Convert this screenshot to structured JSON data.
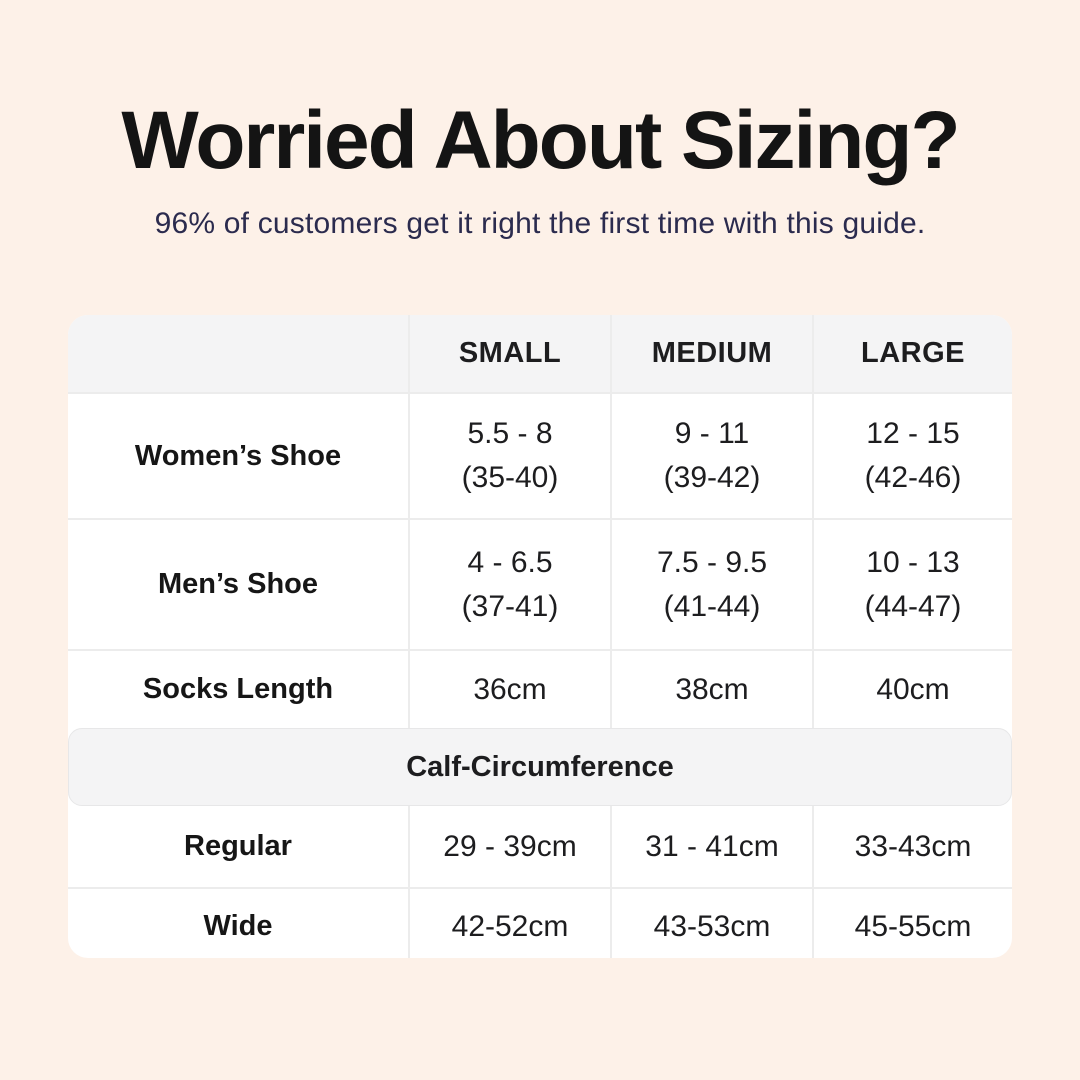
{
  "colors": {
    "background": "#fdf1e8",
    "table_bg": "#ffffff",
    "band_bg": "#f4f4f5",
    "divider": "#ececec",
    "title_text": "#141414",
    "subtitle_text": "#2b2b4e",
    "table_text": "#1d1d1f"
  },
  "header": {
    "title": "Worried About Sizing?",
    "subtitle": "96% of customers get it right the first time with this guide."
  },
  "table": {
    "columns": [
      "SMALL",
      "MEDIUM",
      "LARGE"
    ],
    "rows": [
      {
        "label": "Women’s Shoe",
        "small": [
          "5.5 - 8",
          "(35-40)"
        ],
        "medium": [
          "9 - 11",
          "(39-42)"
        ],
        "large": [
          "12 - 15",
          "(42-46)"
        ]
      },
      {
        "label": "Men’s Shoe",
        "small": [
          "4 - 6.5",
          "(37-41)"
        ],
        "medium": [
          "7.5 - 9.5",
          "(41-44)"
        ],
        "large": [
          "10 - 13",
          "(44-47)"
        ]
      },
      {
        "label": "Socks Length",
        "small": [
          "36cm"
        ],
        "medium": [
          "38cm"
        ],
        "large": [
          "40cm"
        ]
      }
    ],
    "section_header": "Calf-Circumference",
    "calf_rows": [
      {
        "label": "Regular",
        "small": "29 - 39cm",
        "medium": "31 - 41cm",
        "large": "33-43cm"
      },
      {
        "label": "Wide",
        "small": "42-52cm",
        "medium": "43-53cm",
        "large": "45-55cm"
      }
    ]
  },
  "chart_data": {
    "type": "table",
    "title": "Worried About Sizing?",
    "subtitle": "96% of customers get it right the first time with this guide.",
    "columns": [
      "",
      "SMALL",
      "MEDIUM",
      "LARGE"
    ],
    "rows": [
      [
        "Women’s Shoe",
        "5.5 - 8 (35-40)",
        "9 - 11 (39-42)",
        "12 - 15 (42-46)"
      ],
      [
        "Men’s Shoe",
        "4 - 6.5 (37-41)",
        "7.5 - 9.5 (41-44)",
        "10 - 13 (44-47)"
      ],
      [
        "Socks Length",
        "36cm",
        "38cm",
        "40cm"
      ],
      [
        "Calf-Circumference (section header)",
        "",
        "",
        ""
      ],
      [
        "Regular",
        "29 - 39cm",
        "31 - 41cm",
        "33-43cm"
      ],
      [
        "Wide",
        "42-52cm",
        "43-53cm",
        "45-55cm"
      ]
    ]
  }
}
